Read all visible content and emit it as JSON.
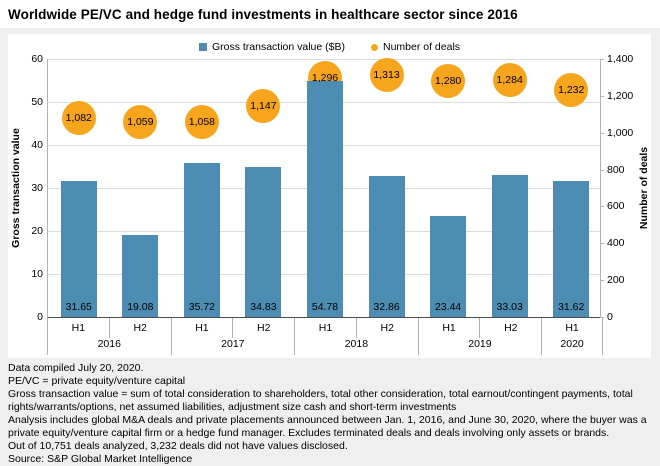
{
  "title": "Worldwide PE/VC and hedge fund investments in healthcare sector since 2016",
  "legend": [
    {
      "label": "Gross transaction value ($B)",
      "shape": "square",
      "color": "#4d8db3"
    },
    {
      "label": "Number of deals",
      "shape": "circle",
      "color": "#f6a51d"
    }
  ],
  "chart_data": {
    "type": "bar",
    "title": "Worldwide PE/VC and hedge fund investments in healthcare sector since 2016",
    "categories": [
      "2016 H1",
      "2016 H2",
      "2017 H1",
      "2017 H2",
      "2018 H1",
      "2018 H2",
      "2019 H1",
      "2019 H2",
      "2020 H1"
    ],
    "groups": [
      {
        "year": "2016",
        "halves": [
          "H1",
          "H2"
        ]
      },
      {
        "year": "2017",
        "halves": [
          "H1",
          "H2"
        ]
      },
      {
        "year": "2018",
        "halves": [
          "H1",
          "H2"
        ]
      },
      {
        "year": "2019",
        "halves": [
          "H1",
          "H2"
        ]
      },
      {
        "year": "2020",
        "halves": [
          "H1"
        ]
      }
    ],
    "series": [
      {
        "name": "Gross transaction value ($B)",
        "type": "bar",
        "axis": "left",
        "color": "#4d8db3",
        "values": [
          31.65,
          19.08,
          35.72,
          34.83,
          54.78,
          32.86,
          23.44,
          33.03,
          31.62
        ],
        "labels": [
          "31.65",
          "19.08",
          "35.72",
          "34.83",
          "54.78",
          "32.86",
          "23.44",
          "33.03",
          "31.62"
        ]
      },
      {
        "name": "Number of deals",
        "type": "bubble",
        "axis": "right",
        "color": "#f6a51d",
        "values": [
          1082,
          1059,
          1058,
          1147,
          1296,
          1313,
          1280,
          1284,
          1232
        ],
        "labels": [
          "1,082",
          "1,059",
          "1,058",
          "1,147",
          "1,296",
          "1,313",
          "1,280",
          "1,284",
          "1,232"
        ]
      }
    ],
    "left_axis": {
      "label": "Gross transaction value",
      "min": 0,
      "max": 60,
      "step": 10
    },
    "right_axis": {
      "label": "Number of deals",
      "min": 0,
      "max": 1400,
      "step": 200
    },
    "grid": true,
    "legend_position": "top"
  },
  "footer": {
    "lines": [
      "Data compiled July 20, 2020.",
      "PE/VC = private equity/venture capital",
      "Gross transaction value = sum of total consideration to shareholders, total other consideration, total earnout/contingent payments, total rights/warrants/options, net assumed liabilities, adjustment size cash and short-term investments",
      "Analysis includes global M&A deals and private placements announced between Jan. 1, 2016, and June 30, 2020, where the buyer was a private equity/venture capital firm or a hedge fund manager. Excludes terminated deals and deals involving only assets or brands.",
      "Out of 10,751 deals analyzed, 3,232 deals did not have values disclosed.",
      "Source: S&P Global Market Intelligence"
    ]
  },
  "colors": {
    "bar": "#4d8db3",
    "bubble": "#f6a51d",
    "background": "#efeff0",
    "panel": "#ffffff",
    "gridline": "#dcdcdc",
    "axis_line": "#b3b3b3",
    "zero_line": "#4a4a4a"
  }
}
